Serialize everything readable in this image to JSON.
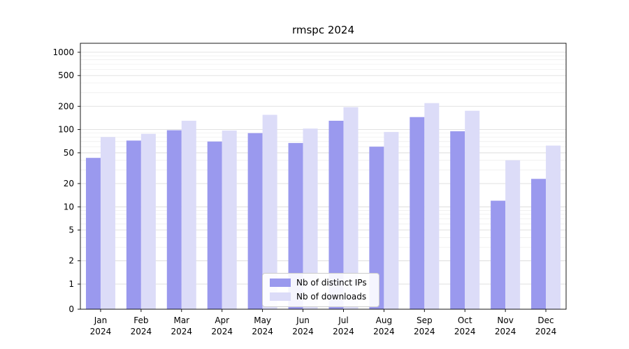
{
  "title": "rmspc 2024",
  "legend": {
    "items": [
      {
        "label": "Nb of distinct IPs",
        "color": "#9a99ee"
      },
      {
        "label": "Nb of downloads",
        "color": "#dcdcf8"
      }
    ]
  },
  "chart_data": {
    "type": "bar",
    "title": "rmspc 2024",
    "categories": [
      "Jan 2024",
      "Feb 2024",
      "Mar 2024",
      "Apr 2024",
      "May 2024",
      "Jun 2024",
      "Jul 2024",
      "Aug 2024",
      "Sep 2024",
      "Oct 2024",
      "Nov 2024",
      "Dec 2024"
    ],
    "series": [
      {
        "name": "Nb of distinct IPs",
        "color": "#9a99ee",
        "values": [
          43,
          72,
          98,
          70,
          90,
          67,
          130,
          60,
          145,
          95,
          12,
          23
        ]
      },
      {
        "name": "Nb of downloads",
        "color": "#dcdcf8",
        "values": [
          80,
          88,
          130,
          97,
          155,
          103,
          195,
          93,
          220,
          175,
          40,
          62
        ]
      }
    ],
    "xlabel": "",
    "ylabel": "",
    "yscale": "symlog",
    "ylim": [
      0,
      1300
    ],
    "yticks": [
      0,
      1,
      2,
      5,
      10,
      20,
      50,
      100,
      200,
      500,
      1000
    ],
    "minor_yticks": [
      3,
      4,
      6,
      7,
      8,
      9,
      30,
      40,
      60,
      70,
      80,
      90,
      300,
      400,
      600,
      700,
      800,
      900
    ],
    "grid": "horizontal",
    "legend_position": "lower center"
  }
}
